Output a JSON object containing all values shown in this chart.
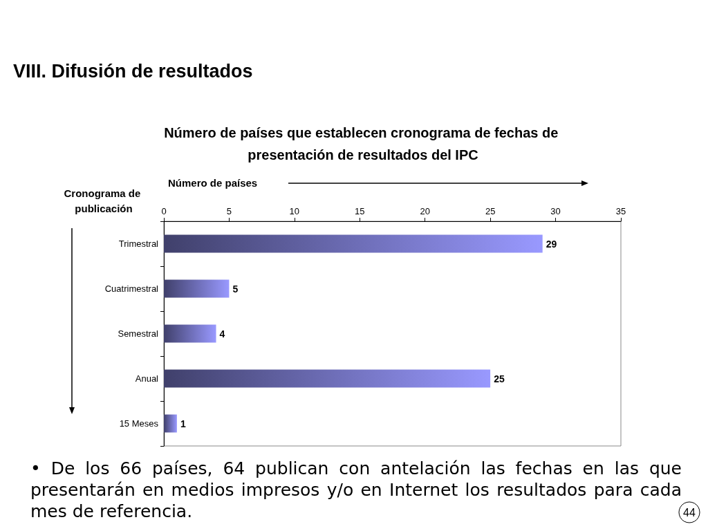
{
  "chart_data": {
    "type": "bar",
    "orientation": "horizontal",
    "title": "VIII. Difusión de resultados",
    "subtitle": "Número de países que establecen cronograma de fechas de presentación de resultados del IPC",
    "xlabel": "Número de países",
    "ylabel": "Cronograma de publicación",
    "categories": [
      "Trimestral",
      "Cuatrimestral",
      "Semestral",
      "Anual",
      "15 Meses"
    ],
    "values": [
      29,
      5,
      4,
      25,
      1
    ],
    "color": "#9999ff",
    "xlim": [
      0,
      35
    ],
    "xticks": [
      0,
      5,
      10,
      15,
      20,
      25,
      30,
      35
    ],
    "grid": false,
    "data_labels": true,
    "annotations": [
      "• De los 66 países, 64 publican con antelación las fechas en las que presentarán en medios impresos y/o en Internet los resultados para cada mes de referencia.",
      "44"
    ]
  }
}
